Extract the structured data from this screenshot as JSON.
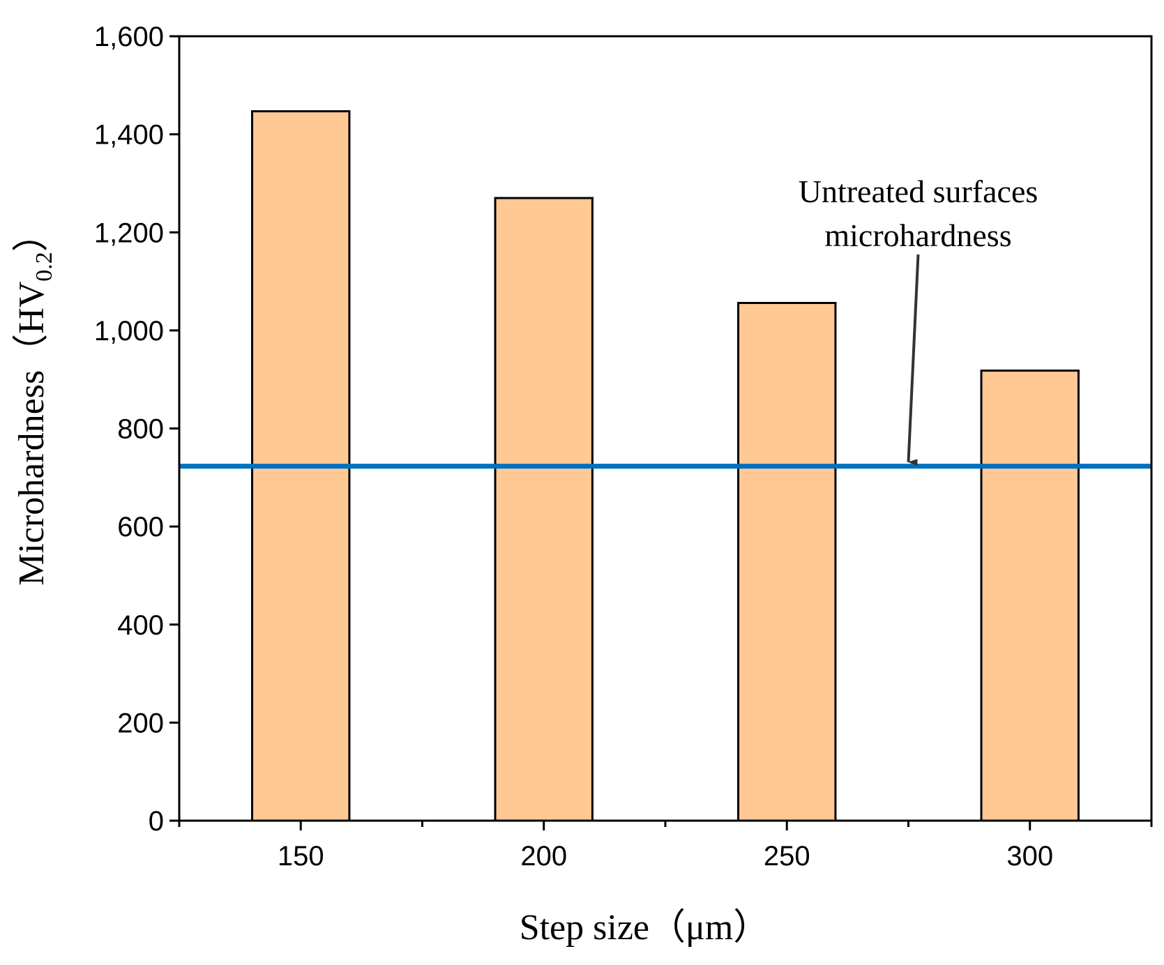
{
  "chart_data": {
    "type": "bar",
    "categories": [
      "150",
      "200",
      "250",
      "300"
    ],
    "values": [
      1447,
      1270,
      1056,
      918
    ],
    "xlabel": "Step size（μm）",
    "ylabel": {
      "main": "Microhardness（HV",
      "sub": "0.2",
      "close": "）"
    },
    "yticks": [
      "0",
      "200",
      "400",
      "600",
      "800",
      "1,000",
      "1,200",
      "1,400",
      "1,600"
    ],
    "ylim": [
      0,
      1600
    ],
    "xlim": [
      125,
      325
    ],
    "grid": false,
    "bar_color": "#FFC895",
    "bar_edge_color": "#000000",
    "reference_line": {
      "value": 723,
      "color": "#0070C0"
    },
    "annotation": {
      "lines": [
        "Untreated surfaces",
        "microhardness"
      ],
      "arrow_target_x": 275,
      "arrow_target_y": 723
    }
  }
}
